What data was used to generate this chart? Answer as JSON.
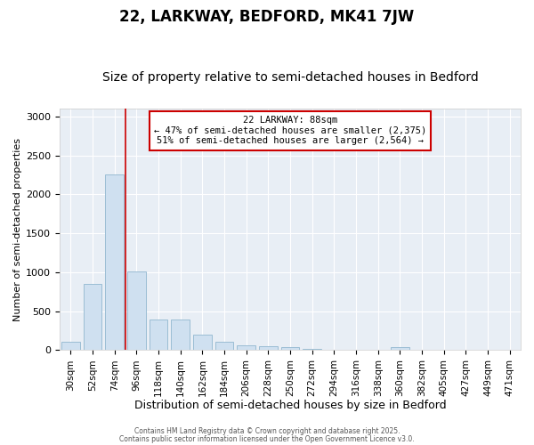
{
  "title1": "22, LARKWAY, BEDFORD, MK41 7JW",
  "title2": "Size of property relative to semi-detached houses in Bedford",
  "xlabel": "Distribution of semi-detached houses by size in Bedford",
  "ylabel": "Number of semi-detached properties",
  "categories": [
    "30sqm",
    "52sqm",
    "74sqm",
    "96sqm",
    "118sqm",
    "140sqm",
    "162sqm",
    "184sqm",
    "206sqm",
    "228sqm",
    "250sqm",
    "272sqm",
    "294sqm",
    "316sqm",
    "338sqm",
    "360sqm",
    "382sqm",
    "405sqm",
    "427sqm",
    "449sqm",
    "471sqm"
  ],
  "values": [
    110,
    850,
    2260,
    1010,
    390,
    390,
    195,
    105,
    60,
    50,
    35,
    20,
    0,
    0,
    0,
    40,
    0,
    0,
    0,
    0,
    0
  ],
  "bar_color": "#cfe0f0",
  "bar_edge_color": "#9bbdd4",
  "vline_color": "#cc0000",
  "annotation_title": "22 LARKWAY: 88sqm",
  "annotation_line2": "← 47% of semi-detached houses are smaller (2,375)",
  "annotation_line3": "51% of semi-detached houses are larger (2,564) →",
  "annotation_box_facecolor": "#ffffff",
  "annotation_box_edgecolor": "#cc0000",
  "ylim": [
    0,
    3100
  ],
  "fig_bg_color": "#ffffff",
  "plot_bg_color": "#e8eef5",
  "grid_color": "#ffffff",
  "title1_fontsize": 12,
  "title2_fontsize": 10,
  "xlabel_fontsize": 9,
  "ylabel_fontsize": 8,
  "tick_fontsize": 8,
  "xtick_fontsize": 7.5,
  "footer1": "Contains HM Land Registry data © Crown copyright and database right 2025.",
  "footer2": "Contains public sector information licensed under the Open Government Licence v3.0."
}
